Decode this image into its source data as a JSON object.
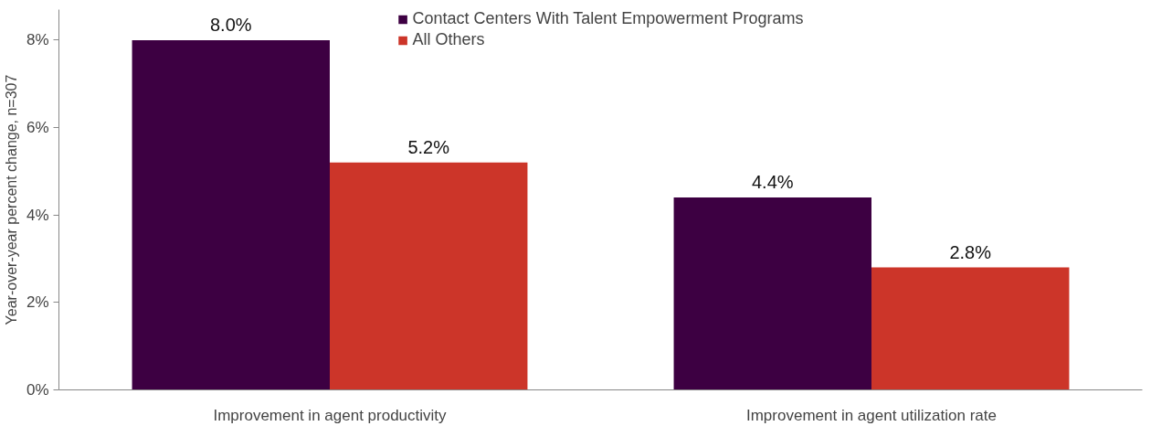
{
  "chart_data": {
    "type": "bar",
    "ylabel": "Year-over-year percent change, n=307",
    "categories": [
      "Improvement in agent productivity",
      "Improvement in agent utilization rate"
    ],
    "series": [
      {
        "name": "Contact Centers With Talent Empowerment Programs",
        "color": "#3d0042",
        "values": [
          8.0,
          4.4
        ],
        "value_labels": [
          "8.0%",
          "4.4%"
        ]
      },
      {
        "name": "All Others",
        "color": "#cc3529",
        "values": [
          5.2,
          2.8
        ],
        "value_labels": [
          "5.2%",
          "2.8%"
        ]
      }
    ],
    "ylim": [
      0,
      8.7
    ],
    "yticks": [
      {
        "value": 0,
        "label": "0%"
      },
      {
        "value": 2,
        "label": "2%"
      },
      {
        "value": 4,
        "label": "4%"
      },
      {
        "value": 6,
        "label": "6%"
      },
      {
        "value": 8,
        "label": "8%"
      }
    ],
    "grid": false,
    "legend": "top"
  }
}
